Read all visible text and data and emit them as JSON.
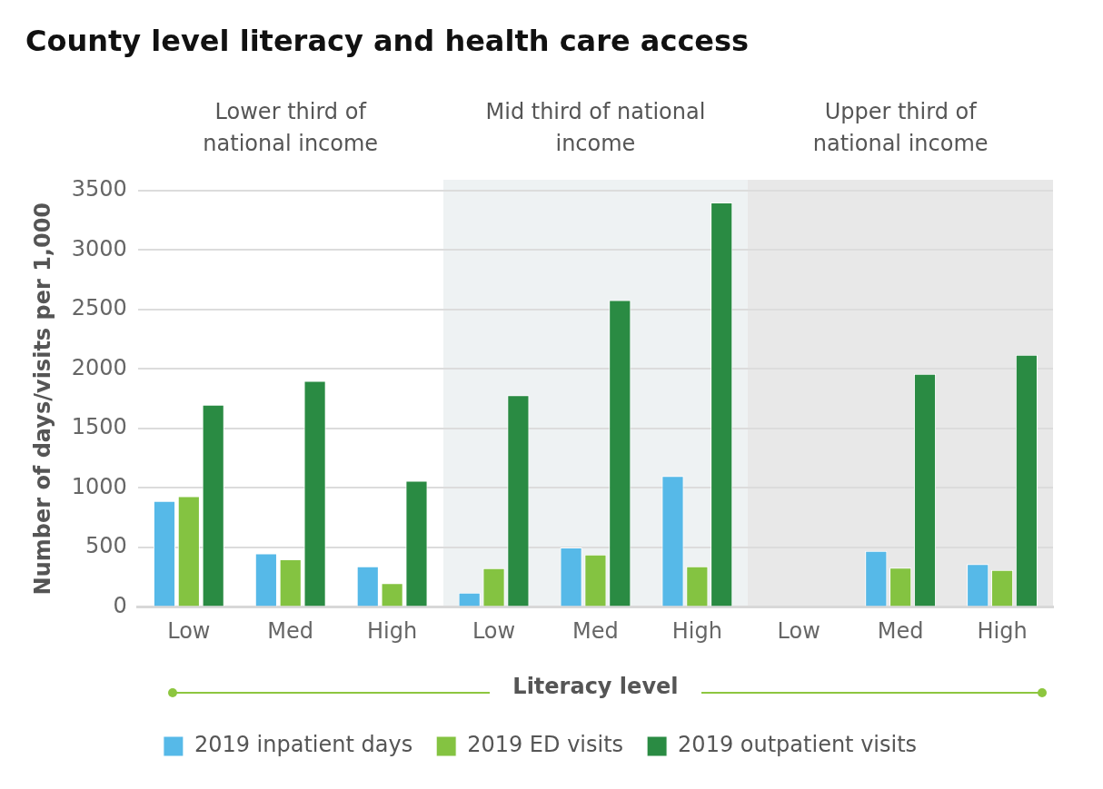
{
  "chart_data": {
    "type": "bar",
    "title": "County level literacy and health care access",
    "ylabel": "Number of days/visits per 1,000",
    "xlabel": "Literacy level",
    "categories": [
      "Low",
      "Med",
      "High",
      "Low",
      "Med",
      "High",
      "Low",
      "Med",
      "High"
    ],
    "series": [
      {
        "name": "2019 inpatient days",
        "color": "#56b9e8",
        "values": [
          890,
          450,
          340,
          120,
          500,
          1100,
          null,
          470,
          360
        ]
      },
      {
        "name": "2019 ED visits",
        "color": "#84c341",
        "values": [
          930,
          400,
          200,
          325,
          440,
          340,
          null,
          330,
          310
        ]
      },
      {
        "name": "2019 outpatient visits",
        "color": "#2a8b43",
        "values": [
          1700,
          1900,
          1060,
          1780,
          2580,
          3400,
          null,
          1960,
          2120
        ]
      }
    ],
    "annotations": [
      "Lower third of national income",
      "Mid third of national income",
      "Upper third of national income"
    ],
    "ylim": [
      0,
      3500
    ],
    "yticks": [
      0,
      500,
      1000,
      1500,
      2000,
      2500,
      3000,
      3500
    ],
    "grid": "y",
    "legend": "bottom"
  }
}
